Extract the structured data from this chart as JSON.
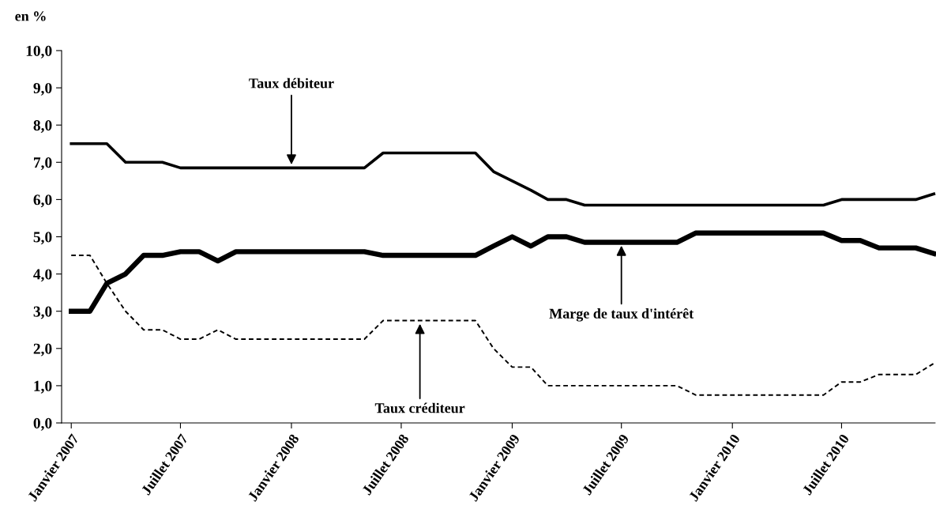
{
  "chart_data": {
    "type": "line",
    "ylabel": "en %",
    "x": [
      "2007-01",
      "2007-02",
      "2007-03",
      "2007-04",
      "2007-05",
      "2007-06",
      "2007-07",
      "2007-08",
      "2007-09",
      "2007-10",
      "2007-11",
      "2007-12",
      "2008-01",
      "2008-02",
      "2008-03",
      "2008-04",
      "2008-05",
      "2008-06",
      "2008-07",
      "2008-08",
      "2008-09",
      "2008-10",
      "2008-11",
      "2008-12",
      "2009-01",
      "2009-02",
      "2009-03",
      "2009-04",
      "2009-05",
      "2009-06",
      "2009-07",
      "2009-08",
      "2009-09",
      "2009-10",
      "2009-11",
      "2009-12",
      "2010-01",
      "2010-02",
      "2010-03",
      "2010-04",
      "2010-05",
      "2010-06",
      "2010-07",
      "2010-08",
      "2010-09",
      "2010-10",
      "2010-11",
      "2010-12"
    ],
    "series": [
      {
        "color": "#000000",
        "line_style": "solid",
        "values": [
          7.5,
          7.5,
          7.5,
          7.0,
          7.0,
          7.0,
          6.85,
          6.85,
          6.85,
          6.85,
          6.85,
          6.85,
          6.85,
          6.85,
          6.85,
          6.85,
          6.85,
          7.25,
          7.25,
          7.25,
          7.25,
          7.25,
          7.25,
          6.75,
          6.5,
          6.25,
          6.0,
          6.0,
          5.85,
          5.85,
          5.85,
          5.85,
          5.85,
          5.85,
          5.85,
          5.85,
          5.85,
          5.85,
          5.85,
          5.85,
          5.85,
          5.85,
          6.0,
          6.0,
          6.0,
          6.0,
          6.0,
          6.15
        ]
      },
      {
        "color": "#000000",
        "line_style": "solid",
        "values": [
          3.0,
          3.0,
          3.75,
          4.0,
          4.5,
          4.5,
          4.6,
          4.6,
          4.35,
          4.6,
          4.6,
          4.6,
          4.6,
          4.6,
          4.6,
          4.6,
          4.6,
          4.5,
          4.5,
          4.5,
          4.5,
          4.5,
          4.5,
          4.75,
          5.0,
          4.75,
          5.0,
          5.0,
          4.85,
          4.85,
          4.85,
          4.85,
          4.85,
          4.85,
          5.1,
          5.1,
          5.1,
          5.1,
          5.1,
          5.1,
          5.1,
          5.1,
          4.9,
          4.9,
          4.7,
          4.7,
          4.7,
          4.55
        ]
      },
      {
        "color": "#000000",
        "line_style": "dashed",
        "values": [
          4.5,
          4.5,
          3.75,
          3.0,
          2.5,
          2.5,
          2.25,
          2.25,
          2.5,
          2.25,
          2.25,
          2.25,
          2.25,
          2.25,
          2.25,
          2.25,
          2.25,
          2.75,
          2.75,
          2.75,
          2.75,
          2.75,
          2.75,
          2.0,
          1.5,
          1.5,
          1.0,
          1.0,
          1.0,
          1.0,
          1.0,
          1.0,
          1.0,
          1.0,
          0.75,
          0.75,
          0.75,
          0.75,
          0.75,
          0.75,
          0.75,
          0.75,
          1.1,
          1.1,
          1.3,
          1.3,
          1.3,
          1.6
        ]
      }
    ],
    "xlim": [
      "2006-12-16",
      "2010-12-03"
    ],
    "xticks": [
      {
        "value": "2007-01",
        "label": "Janvier 2007"
      },
      {
        "value": "2007-07",
        "label": "Juillet 2007"
      },
      {
        "value": "2008-01",
        "label": "Janvier 2008"
      },
      {
        "value": "2008-07",
        "label": "Juillet 2008"
      },
      {
        "value": "2009-01",
        "label": "Janvier 2009"
      },
      {
        "value": "2009-07",
        "label": "Juillet 2009"
      },
      {
        "value": "2010-01",
        "label": "Janvier 2010"
      },
      {
        "value": "2010-07",
        "label": "Juillet 2010"
      }
    ],
    "ylim": [
      0,
      10
    ],
    "yticks": [
      {
        "value": 0,
        "label": "0,0"
      },
      {
        "value": 1,
        "label": "1,0"
      },
      {
        "value": 2,
        "label": "2,0"
      },
      {
        "value": 3,
        "label": "3,0"
      },
      {
        "value": 4,
        "label": "4,0"
      },
      {
        "value": 5,
        "label": "5,0"
      },
      {
        "value": 6,
        "label": "6,0"
      },
      {
        "value": 7,
        "label": "7,0"
      },
      {
        "value": 8,
        "label": "8,0"
      },
      {
        "value": 9,
        "label": "9,0"
      },
      {
        "value": 10,
        "label": "10,0"
      }
    ],
    "annotations": [
      {
        "text": "Taux débiteur",
        "x": "2008-01",
        "y": 6.85
      },
      {
        "text": "Marge de taux d'intérêt",
        "x": "2009-07",
        "y": 4.85
      },
      {
        "text": "Taux créditeur",
        "x": "2008-08",
        "y": 2.75
      }
    ],
    "grid": false,
    "legend": false,
    "marker": "none"
  }
}
